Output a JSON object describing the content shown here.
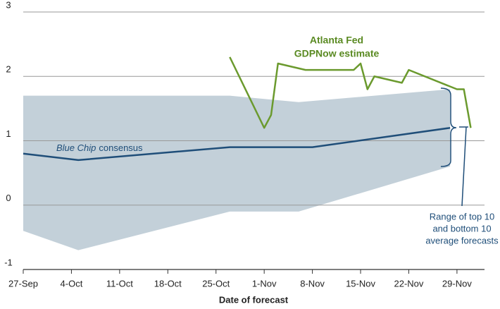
{
  "chart_data": {
    "type": "line",
    "x_label": "Date of forecast",
    "xlim": [
      "27-Sep",
      "3-Dec"
    ],
    "xticks": [
      "27-Sep",
      "4-Oct",
      "11-Oct",
      "18-Oct",
      "25-Oct",
      "1-Nov",
      "8-Nov",
      "15-Nov",
      "22-Nov",
      "29-Nov"
    ],
    "ylim": [
      -1,
      3
    ],
    "yticks": [
      -1,
      0,
      1,
      2,
      3
    ],
    "grid": true,
    "band": {
      "color": "#c3d0d9",
      "x": [
        "27-Sep",
        "5-Oct",
        "27-Oct",
        "6-Nov",
        "28-Nov"
      ],
      "upper": [
        1.7,
        1.7,
        1.7,
        1.6,
        1.8
      ],
      "lower": [
        -0.4,
        -0.7,
        -0.1,
        -0.1,
        0.6
      ]
    },
    "series": [
      {
        "name": "Blue Chip consensus",
        "color": "#1f4e79",
        "x": [
          "27-Sep",
          "5-Oct",
          "27-Oct",
          "8-Nov",
          "28-Nov"
        ],
        "values": [
          0.8,
          0.7,
          0.9,
          0.9,
          1.2
        ]
      },
      {
        "name": "Atlanta Fed GDPNow estimate",
        "color": "#6b9a2e",
        "x": [
          "27-Oct",
          "1-Nov",
          "2-Nov",
          "3-Nov",
          "7-Nov",
          "14-Nov",
          "15-Nov",
          "16-Nov",
          "17-Nov",
          "21-Nov",
          "22-Nov",
          "29-Nov",
          "30-Nov",
          "1-Dec"
        ],
        "values": [
          2.3,
          1.2,
          1.4,
          2.2,
          2.1,
          2.1,
          2.2,
          1.8,
          2.0,
          1.9,
          2.1,
          1.8,
          1.8,
          1.2
        ]
      }
    ],
    "annotations": {
      "gdpnow": [
        "Atlanta Fed",
        "GDPNow estimate"
      ],
      "bluechip": [
        "Blue Chip",
        "consensus"
      ],
      "range": [
        "Range of top 10",
        "and bottom 10",
        "average forecasts"
      ]
    }
  }
}
